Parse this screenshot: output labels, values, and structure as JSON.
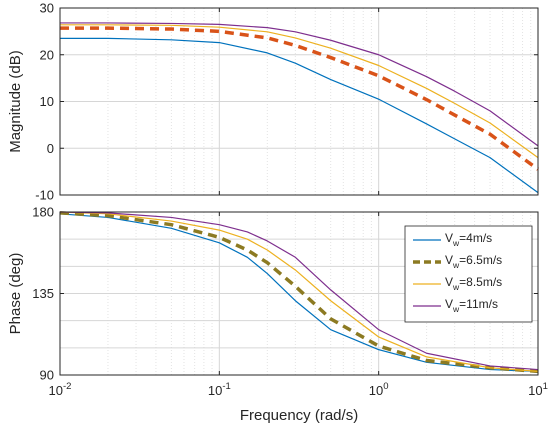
{
  "chart_data": [
    {
      "type": "line",
      "ylabel": "Magnitude (dB)",
      "xscale": "log",
      "xlim": [
        0.01,
        10
      ],
      "ylim": [
        -10,
        30
      ],
      "yticks": [
        "-10",
        "0",
        "10",
        "20",
        "30"
      ],
      "grid": true,
      "series": [
        {
          "name": "Vw=4m/s",
          "color": "#0072BD",
          "dash": "solid",
          "values": [
            [
              0.01,
              23.5
            ],
            [
              0.02,
              23.5
            ],
            [
              0.05,
              23.2
            ],
            [
              0.1,
              22.6
            ],
            [
              0.2,
              20.4
            ],
            [
              0.3,
              18.2
            ],
            [
              0.5,
              14.7
            ],
            [
              1,
              10.5
            ],
            [
              2,
              5.2
            ],
            [
              3,
              2.0
            ],
            [
              5,
              -2.0
            ],
            [
              10,
              -9.5
            ]
          ]
        },
        {
          "name": "Vw=6.5m/s",
          "color": "#D95319",
          "dash": "dashed",
          "values": [
            [
              0.01,
              25.7
            ],
            [
              0.02,
              25.7
            ],
            [
              0.05,
              25.5
            ],
            [
              0.1,
              25.0
            ],
            [
              0.2,
              23.6
            ],
            [
              0.3,
              22.0
            ],
            [
              0.5,
              19.4
            ],
            [
              1,
              15.5
            ],
            [
              2,
              10.4
            ],
            [
              3,
              7.1
            ],
            [
              5,
              3.0
            ],
            [
              10,
              -4.5
            ]
          ]
        },
        {
          "name": "Vw=8.5m/s",
          "color": "#EDB120",
          "dash": "solid",
          "values": [
            [
              0.01,
              26.4
            ],
            [
              0.02,
              26.4
            ],
            [
              0.05,
              26.3
            ],
            [
              0.1,
              25.9
            ],
            [
              0.2,
              24.9
            ],
            [
              0.3,
              23.6
            ],
            [
              0.5,
              21.4
            ],
            [
              1,
              17.7
            ],
            [
              2,
              12.8
            ],
            [
              3,
              9.6
            ],
            [
              5,
              5.4
            ],
            [
              10,
              -2.0
            ]
          ]
        },
        {
          "name": "Vw=11m/s",
          "color": "#7E2F8E",
          "dash": "solid",
          "values": [
            [
              0.01,
              26.8
            ],
            [
              0.02,
              26.8
            ],
            [
              0.05,
              26.7
            ],
            [
              0.1,
              26.5
            ],
            [
              0.2,
              25.8
            ],
            [
              0.3,
              24.9
            ],
            [
              0.5,
              23.1
            ],
            [
              1,
              20.0
            ],
            [
              2,
              15.3
            ],
            [
              3,
              12.2
            ],
            [
              5,
              8.0
            ],
            [
              10,
              0.5
            ]
          ]
        }
      ]
    },
    {
      "type": "line",
      "xlabel": "Frequency  (rad/s)",
      "ylabel": "Phase (deg)",
      "xscale": "log",
      "xlim": [
        0.01,
        10
      ],
      "ylim": [
        90,
        180
      ],
      "xticks": [
        {
          "base": "10",
          "exp": "-2"
        },
        {
          "base": "10",
          "exp": "-1"
        },
        {
          "base": "10",
          "exp": "0"
        },
        {
          "base": "10",
          "exp": "1"
        }
      ],
      "yticks": [
        "90",
        "135",
        "180"
      ],
      "grid": true,
      "legend_position": "right",
      "series": [
        {
          "name": "Vw=4m/s",
          "color": "#0072BD",
          "dash": "solid",
          "values": [
            [
              0.01,
              179
            ],
            [
              0.02,
              177
            ],
            [
              0.05,
              171
            ],
            [
              0.1,
              163
            ],
            [
              0.15,
              155
            ],
            [
              0.2,
              146
            ],
            [
              0.3,
              131
            ],
            [
              0.5,
              115
            ],
            [
              1,
              104
            ],
            [
              2,
              97
            ],
            [
              5,
              93
            ],
            [
              10,
              92
            ]
          ]
        },
        {
          "name": "Vw=6.5m/s",
          "color": "#8C7A22",
          "dash": "dashed",
          "values": [
            [
              0.01,
              179.5
            ],
            [
              0.02,
              178
            ],
            [
              0.05,
              173
            ],
            [
              0.1,
              166
            ],
            [
              0.15,
              159
            ],
            [
              0.2,
              152
            ],
            [
              0.3,
              139
            ],
            [
              0.5,
              121
            ],
            [
              1,
              106
            ],
            [
              2,
              98
            ],
            [
              5,
              94
            ],
            [
              10,
              92
            ]
          ]
        },
        {
          "name": "Vw=8.5m/s",
          "color": "#EDB120",
          "dash": "solid",
          "values": [
            [
              0.01,
              180
            ],
            [
              0.02,
              179
            ],
            [
              0.05,
              175
            ],
            [
              0.1,
              170
            ],
            [
              0.15,
              165
            ],
            [
              0.2,
              159
            ],
            [
              0.3,
              148
            ],
            [
              0.5,
              131
            ],
            [
              1,
              111
            ],
            [
              2,
              100
            ],
            [
              5,
              94
            ],
            [
              10,
              92
            ]
          ]
        },
        {
          "name": "Vw=11m/s",
          "color": "#7E2F8E",
          "dash": "solid",
          "values": [
            [
              0.01,
              180
            ],
            [
              0.02,
              179.5
            ],
            [
              0.05,
              177
            ],
            [
              0.1,
              173
            ],
            [
              0.15,
              169
            ],
            [
              0.2,
              164
            ],
            [
              0.3,
              155
            ],
            [
              0.5,
              137
            ],
            [
              1,
              115
            ],
            [
              2,
              102
            ],
            [
              5,
              95
            ],
            [
              10,
              93
            ]
          ]
        }
      ]
    }
  ],
  "legend": {
    "entries": [
      {
        "prefix": "V",
        "sub": "w",
        "suffix": "=4m/s"
      },
      {
        "prefix": "V",
        "sub": "w",
        "suffix": "=6.5m/s"
      },
      {
        "prefix": "V",
        "sub": "w",
        "suffix": "=8.5m/s"
      },
      {
        "prefix": "V",
        "sub": "w",
        "suffix": "=11m/s"
      }
    ]
  }
}
